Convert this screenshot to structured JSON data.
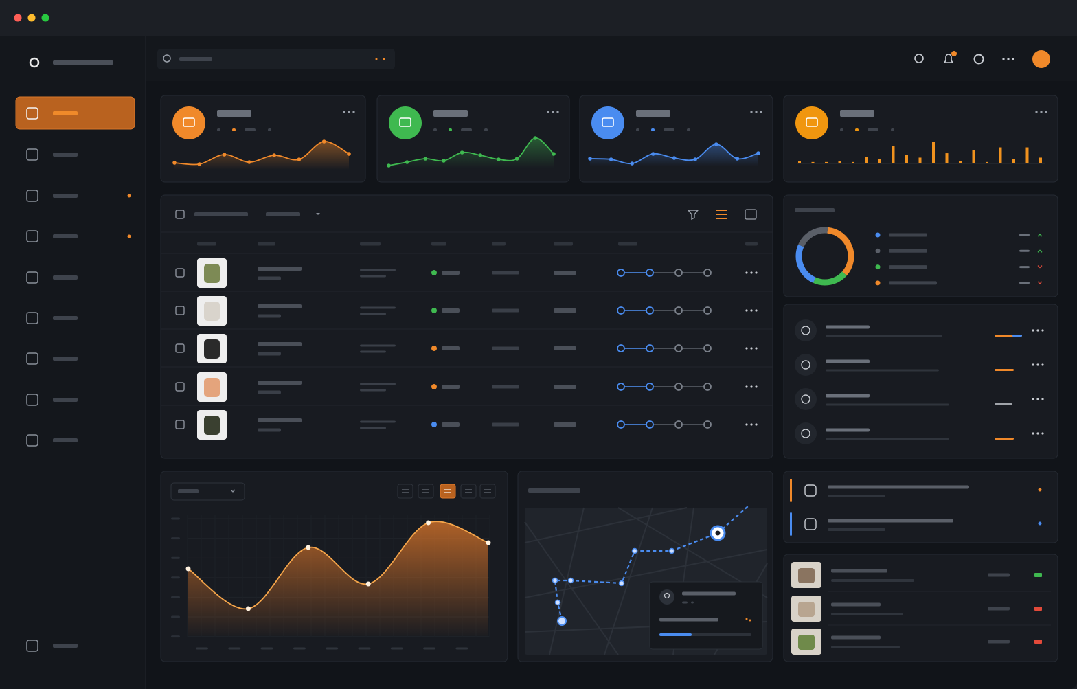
{
  "chart_data": [
    {
      "type": "area",
      "color": "#f0892a",
      "values": [
        28,
        26,
        40,
        29,
        39,
        33,
        59,
        41
      ]
    },
    {
      "type": "area",
      "color": "#3fb950",
      "values": [
        24,
        29,
        34,
        31,
        43,
        39,
        33,
        34,
        64,
        41
      ]
    },
    {
      "type": "area",
      "color": "#4a8cf0",
      "values": [
        34,
        33,
        27,
        41,
        35,
        33,
        55,
        34,
        42
      ]
    },
    {
      "type": "bar",
      "color": "#f0921e",
      "values": [
        3,
        2,
        2,
        3,
        2,
        9,
        6,
        24,
        12,
        8,
        30,
        14,
        3,
        18,
        2,
        22,
        6,
        22,
        8
      ]
    },
    {
      "type": "pie",
      "values": [
        35,
        20,
        25,
        20
      ],
      "colors": [
        "#f0892a",
        "#3fb950",
        "#4a8cf0",
        "#5a5f68"
      ]
    },
    {
      "type": "area",
      "color": "#f5a54a",
      "values": [
        98,
        40,
        129,
        76,
        165,
        136
      ]
    }
  ]
}
